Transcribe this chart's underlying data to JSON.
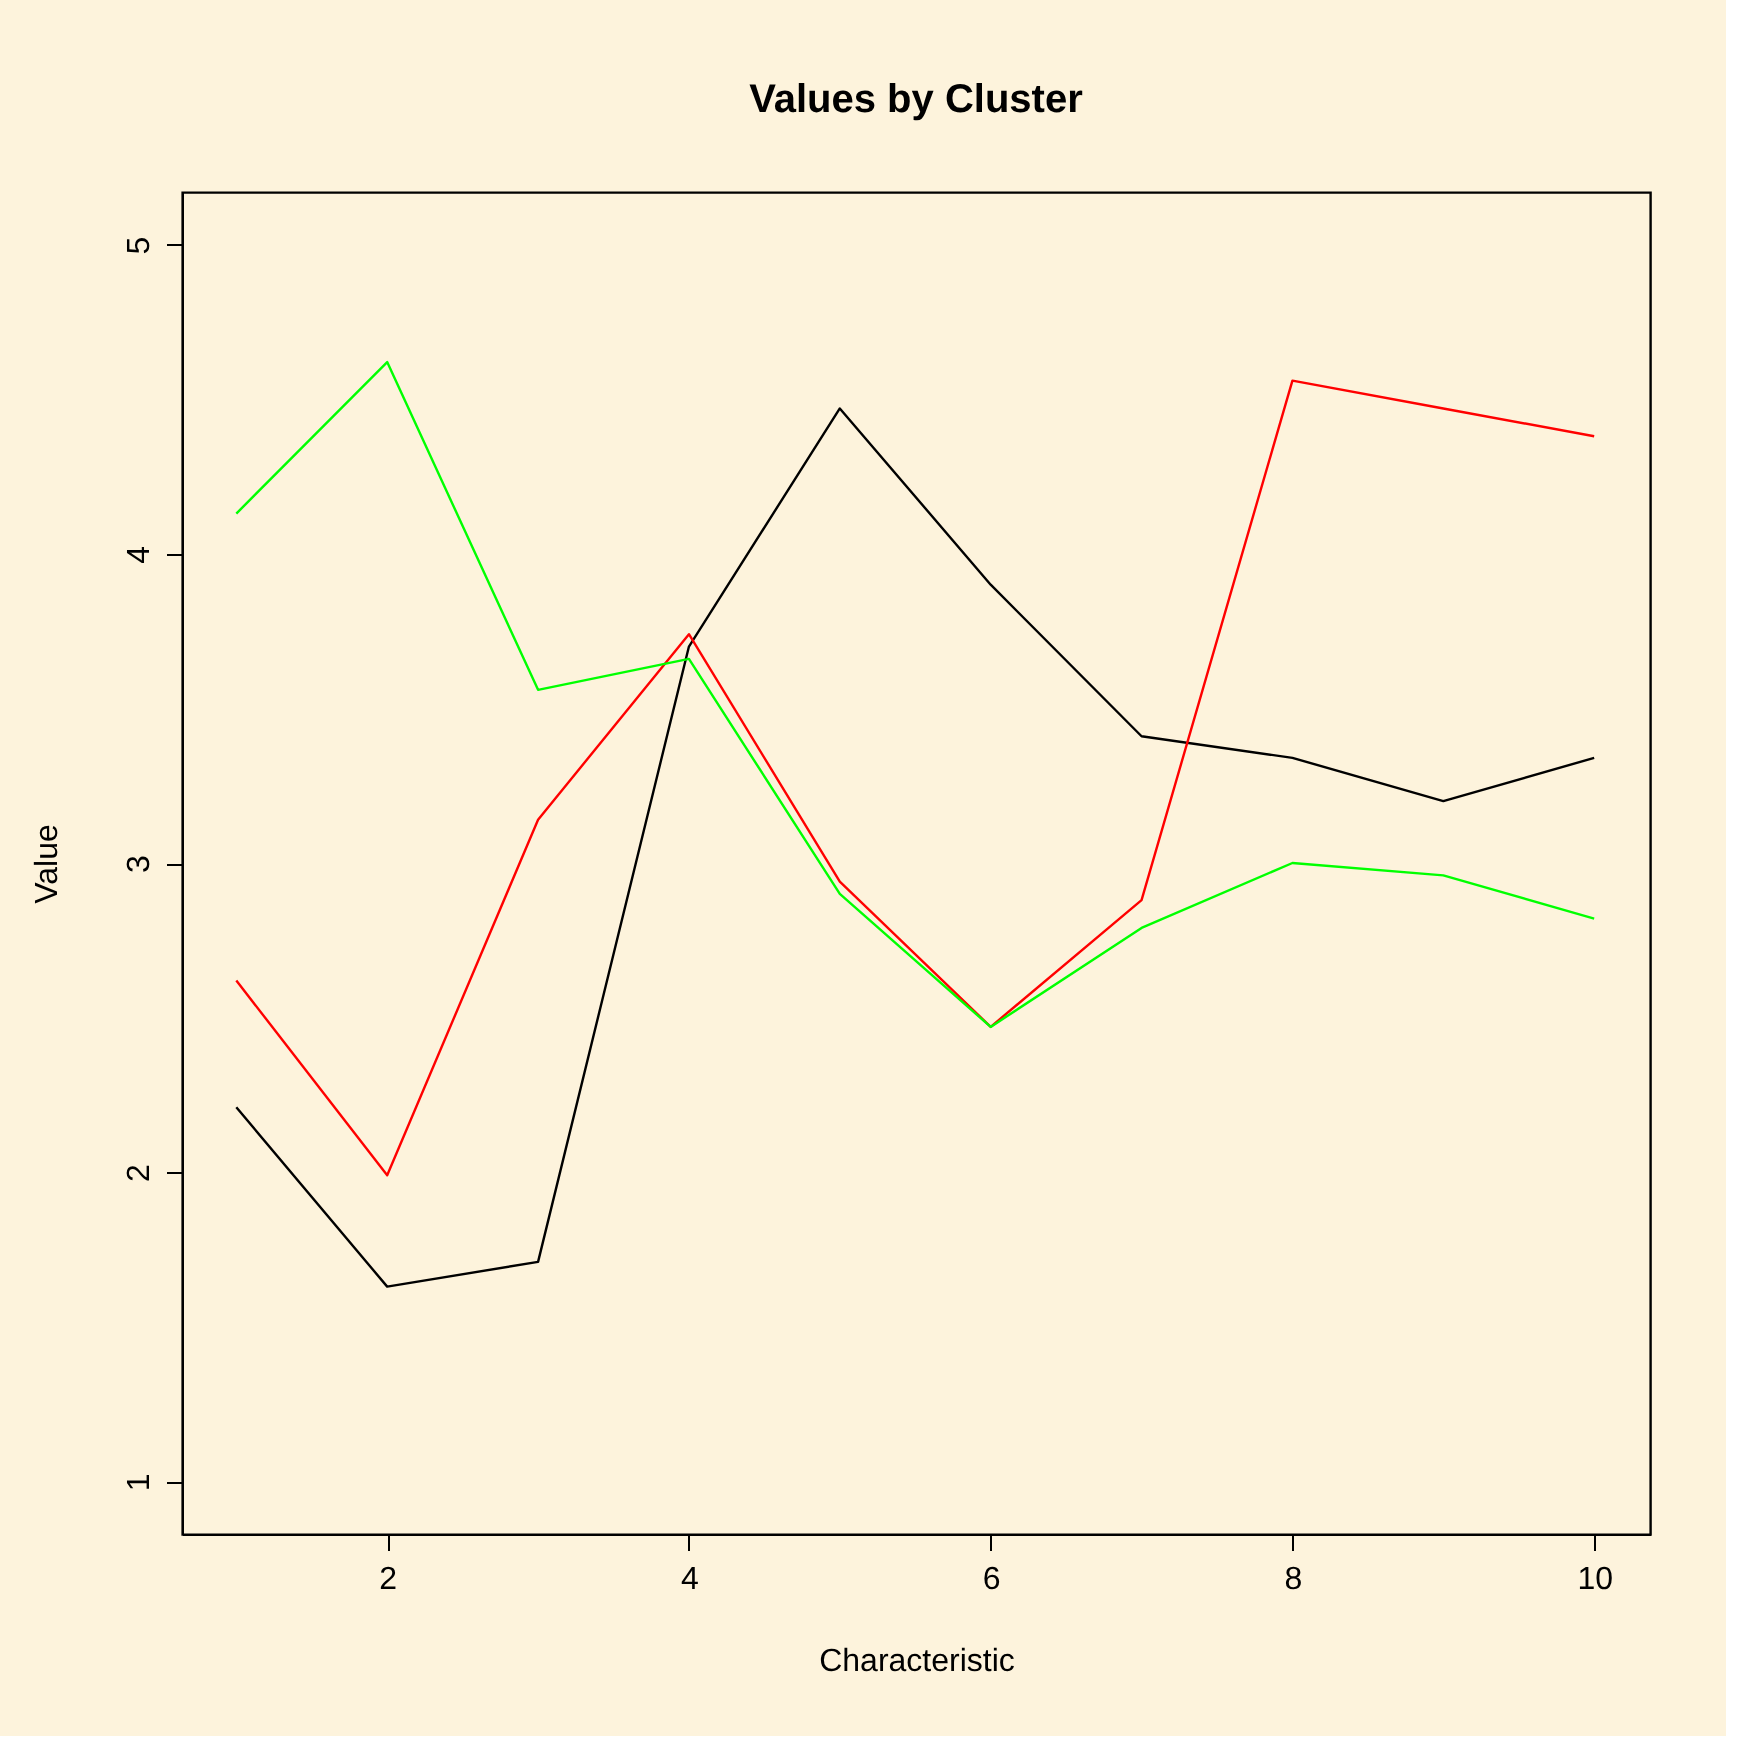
{
  "chart_data": {
    "type": "line",
    "title": "Values by Cluster",
    "xlabel": "Characteristic",
    "ylabel": "Value",
    "x": [
      1,
      2,
      3,
      4,
      5,
      6,
      7,
      8,
      9,
      10
    ],
    "series": [
      {
        "color": "#000000",
        "values": [
          2.21,
          1.63,
          1.71,
          3.7,
          4.47,
          3.9,
          3.41,
          3.34,
          3.2,
          3.34
        ]
      },
      {
        "color": "#ff0000",
        "values": [
          2.62,
          1.99,
          3.14,
          3.74,
          2.94,
          2.47,
          2.88,
          4.56,
          4.47,
          4.38
        ]
      },
      {
        "color": "#00ff00",
        "values": [
          4.13,
          4.62,
          3.56,
          3.66,
          2.9,
          2.47,
          2.79,
          3.0,
          2.96,
          2.82
        ]
      }
    ],
    "xlim": [
      0.64,
      10.37
    ],
    "ylim": [
      0.83,
      5.17
    ],
    "xticks": [
      2,
      4,
      6,
      8,
      10
    ],
    "yticks": [
      1,
      2,
      3,
      4,
      5
    ],
    "grid": false,
    "marker": "none",
    "line_style": "solid"
  }
}
